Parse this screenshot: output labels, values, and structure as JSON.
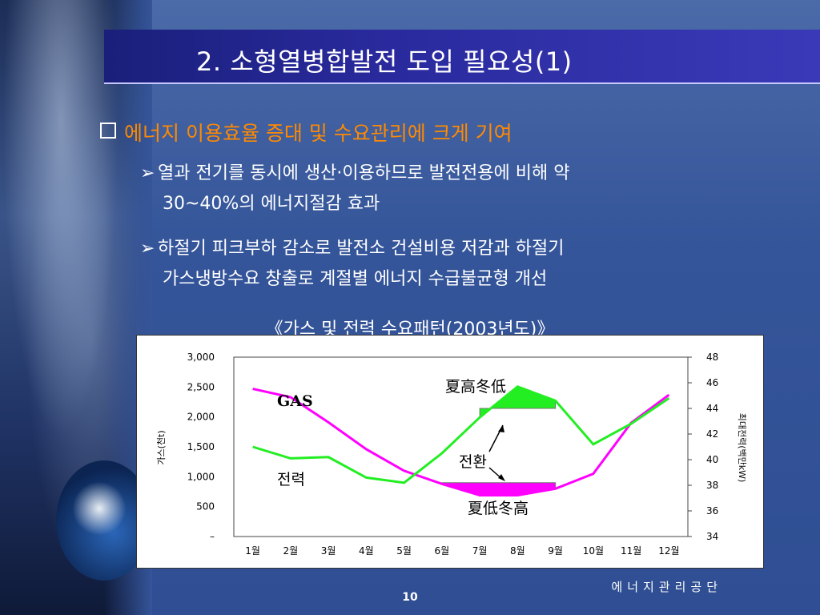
{
  "slide": {
    "title": "2. 소형열병합발전 도입 필요성(1)",
    "bullet_main": "에너지 이용효율 증대 및 수요관리에 크게 기여",
    "sub1_line1": "열과 전기를 동시에 생산·이용하므로 발전전용에 비해 약",
    "sub1_line2": "30~40%의 에너지절감 효과",
    "sub2_line1": "하절기 피크부하 감소로 발전소 건설비용 저감과 하절기",
    "sub2_line2": "가스냉방수요 창출로 계절별 에너지 수급불균형 개선",
    "chart_title": "《가스 및 전력 수요패턴(2003년도)》",
    "footer": "에너지관리공단",
    "page_number": "10",
    "colors": {
      "gas": "#ff00ff",
      "power": "#22ee22",
      "title_bar": "#2a2a9e",
      "accent": "#ff8a00"
    }
  },
  "chart_data": {
    "type": "line",
    "categories": [
      "1월",
      "2월",
      "3월",
      "4월",
      "5월",
      "6월",
      "7월",
      "8월",
      "9월",
      "10월",
      "11월",
      "12월"
    ],
    "ylabel": "가스(천t)",
    "y2label": "최대전력(백만kW)",
    "yticks": [
      "3,000",
      "2,500",
      "2,000",
      "1,500",
      "1,000",
      "500",
      "–"
    ],
    "y2ticks": [
      "48",
      "46",
      "44",
      "42",
      "40",
      "38",
      "36",
      "34"
    ],
    "ylim": [
      0,
      3000
    ],
    "y2lim": [
      34,
      48
    ],
    "series": [
      {
        "name": "GAS",
        "axis": "left",
        "color": "#ff00ff",
        "values": [
          2470,
          2330,
          1910,
          1460,
          1100,
          880,
          690,
          690,
          800,
          1050,
          1900,
          2370
        ]
      },
      {
        "name": "전력",
        "axis": "right",
        "color": "#22ee22",
        "values": [
          41.0,
          40.1,
          40.2,
          38.6,
          38.2,
          40.5,
          43.3,
          45.7,
          44.6,
          41.2,
          42.8,
          44.8
        ]
      }
    ],
    "annotations": {
      "summer_high_winter_low": "夏高冬低",
      "summer_low_winter_high": "夏低冬高",
      "switch": "전환"
    }
  }
}
